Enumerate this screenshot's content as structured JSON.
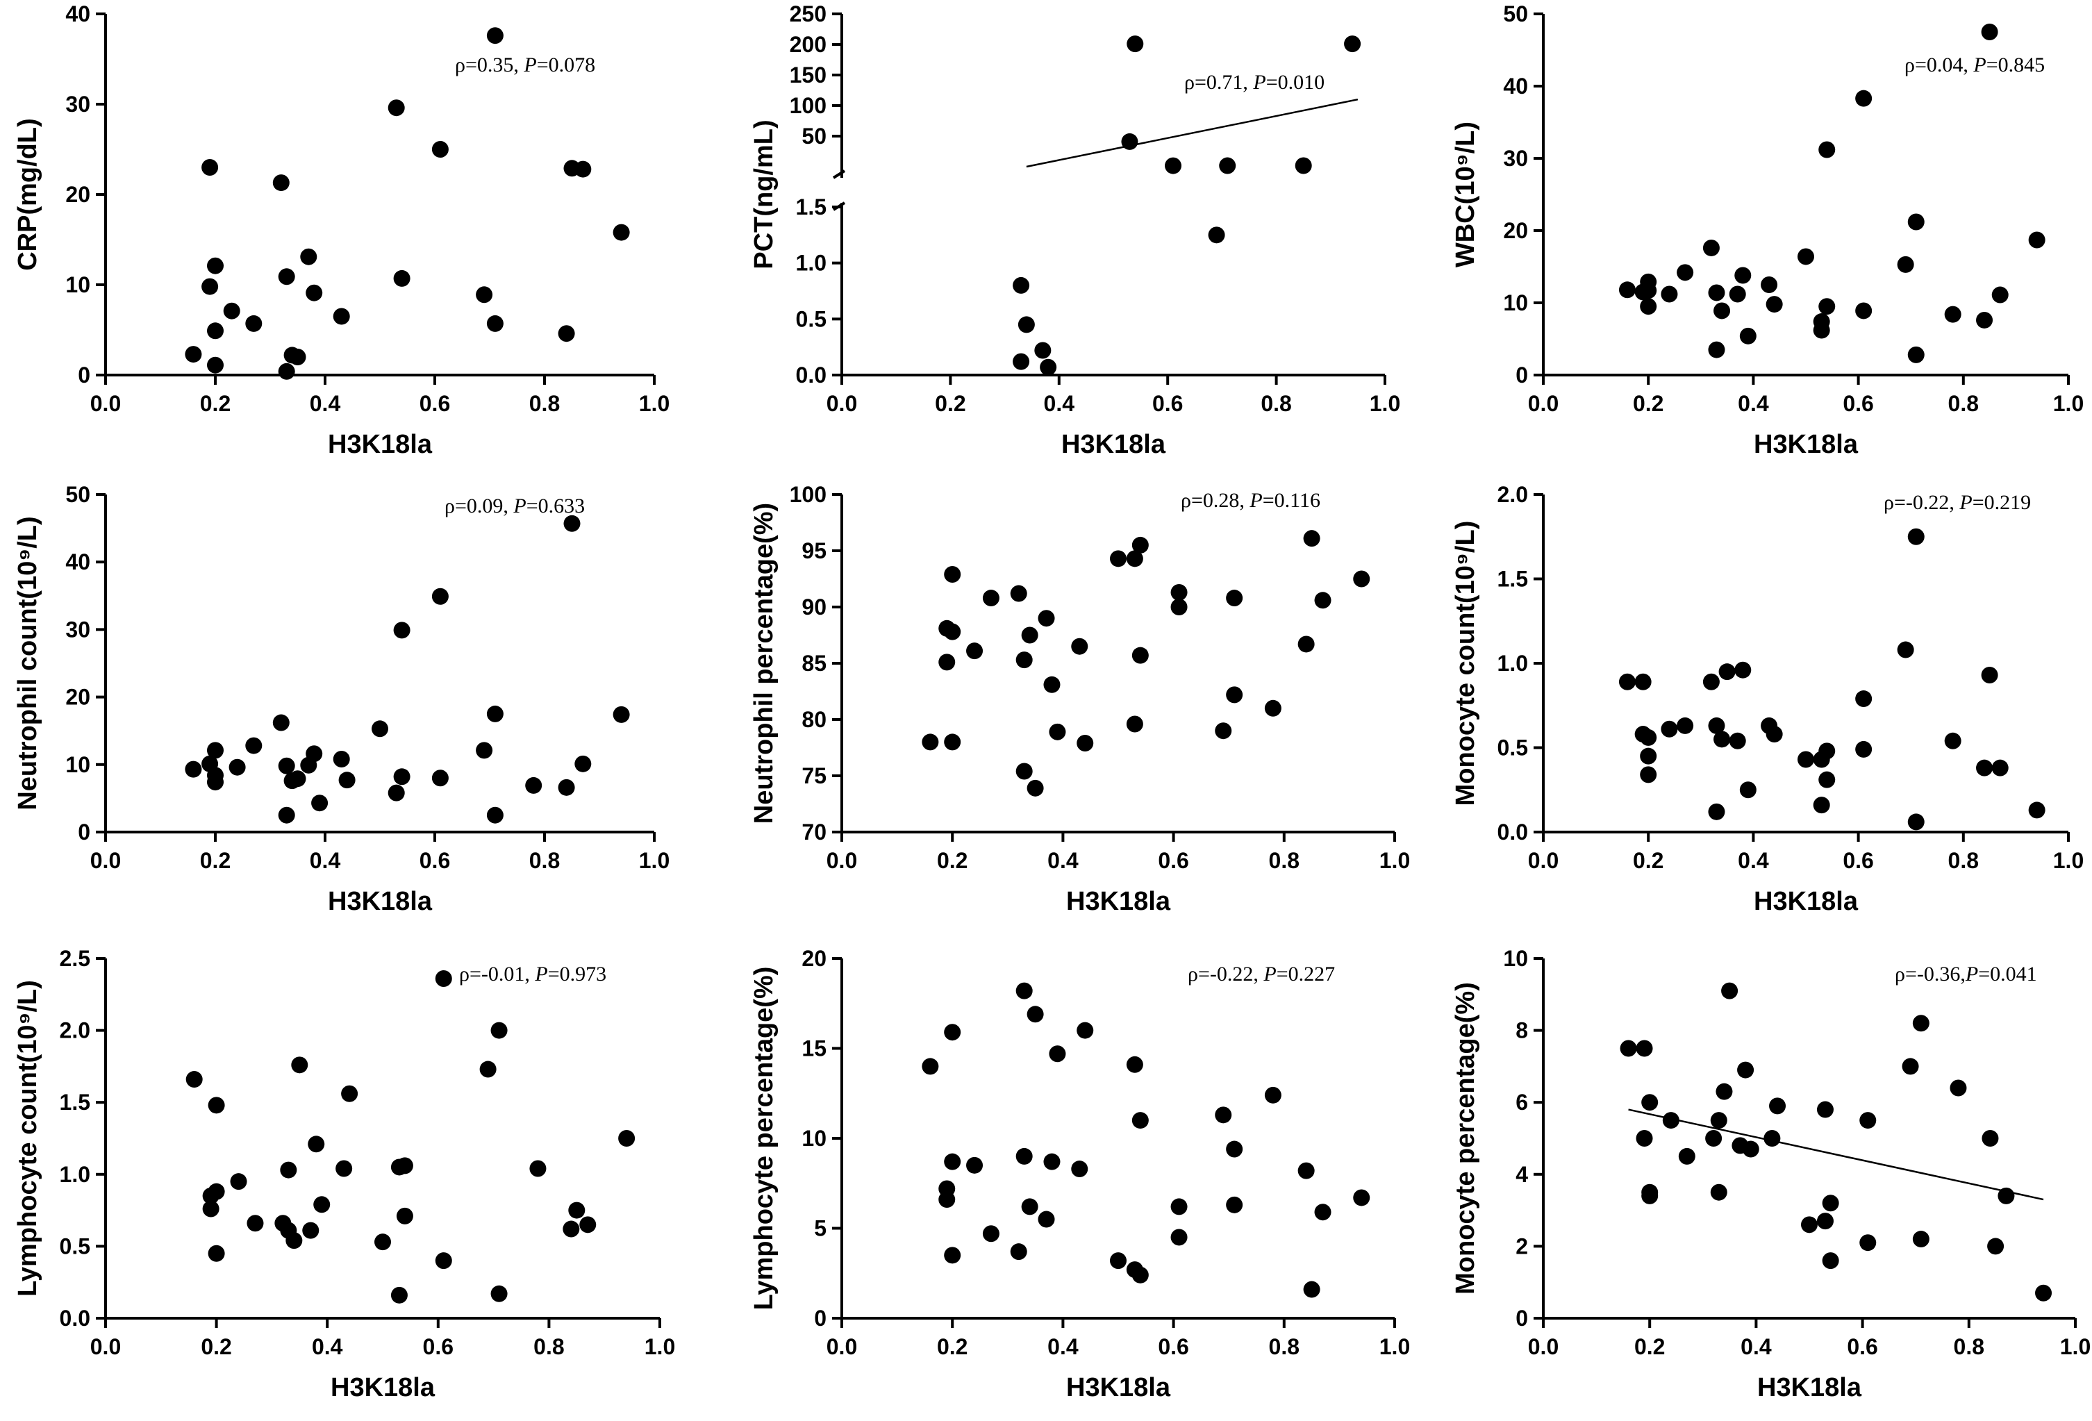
{
  "chart_data": [
    {
      "type": "scatter",
      "id": "crp",
      "xlabel": "H3K18la",
      "ylabel": "CRP(mg/dL)",
      "xlim": [
        0,
        1
      ],
      "ylim": [
        0,
        40
      ],
      "xticks": [
        "0.0",
        "0.2",
        "0.4",
        "0.6",
        "0.8",
        "1.0"
      ],
      "yticks": [
        "0",
        "10",
        "20",
        "30",
        "40"
      ],
      "annotation": {
        "rho_prefix": "ρ=0.35, ",
        "p_label": "P",
        "p_value": "=0.078"
      },
      "x": [
        0.16,
        0.19,
        0.19,
        0.2,
        0.2,
        0.2,
        0.23,
        0.27,
        0.32,
        0.33,
        0.33,
        0.34,
        0.35,
        0.37,
        0.38,
        0.43,
        0.53,
        0.54,
        0.61,
        0.69,
        0.71,
        0.71,
        0.84,
        0.85,
        0.87,
        0.94
      ],
      "y": [
        2.3,
        23.0,
        9.8,
        12.1,
        4.9,
        1.1,
        7.1,
        5.7,
        21.3,
        10.9,
        0.4,
        2.2,
        2.0,
        13.1,
        9.1,
        6.5,
        29.6,
        10.7,
        25.0,
        8.9,
        37.6,
        5.7,
        4.6,
        22.9,
        22.8,
        15.8
      ]
    },
    {
      "type": "scatter",
      "id": "pct",
      "xlabel": "H3K18la",
      "ylabel": "PCT(ng/mL)",
      "xlim": [
        0,
        1
      ],
      "ylim_lower": [
        0,
        1.5
      ],
      "ylim_upper": [
        0,
        250
      ],
      "xticks": [
        "0.0",
        "0.2",
        "0.4",
        "0.6",
        "0.8",
        "1.0"
      ],
      "yticks_lower": [
        "0.0",
        "0.5",
        "1.0",
        "1.5"
      ],
      "yticks_upper": [
        "50",
        "100",
        "150",
        "200",
        "250"
      ],
      "annotation": {
        "rho_prefix": "ρ=0.71, ",
        "p_label": "P",
        "p_value": "=0.010"
      },
      "x": [
        0.33,
        0.33,
        0.34,
        0.37,
        0.38,
        0.53,
        0.54,
        0.61,
        0.69,
        0.71,
        0.85,
        0.94
      ],
      "y": [
        0.8,
        0.12,
        0.45,
        0.22,
        0.07,
        41,
        201,
        1.6,
        1.25,
        1.65,
        1.72,
        201
      ],
      "fit_line": {
        "x1": 0.34,
        "x2": 0.95,
        "segment": "upper",
        "y1": 0,
        "y2": 110
      }
    },
    {
      "type": "scatter",
      "id": "wbc",
      "xlabel": "H3K18la",
      "ylabel": "WBC(10⁹/L)",
      "xlim": [
        0,
        1
      ],
      "ylim": [
        0,
        50
      ],
      "xticks": [
        "0.0",
        "0.2",
        "0.4",
        "0.6",
        "0.8",
        "1.0"
      ],
      "yticks": [
        "0",
        "10",
        "20",
        "30",
        "40",
        "50"
      ],
      "annotation": {
        "rho_prefix": "ρ=0.04, ",
        "p_label": "P",
        "p_value": "=0.845"
      },
      "x": [
        0.16,
        0.19,
        0.2,
        0.2,
        0.2,
        0.24,
        0.27,
        0.32,
        0.33,
        0.33,
        0.34,
        0.37,
        0.38,
        0.39,
        0.43,
        0.44,
        0.5,
        0.53,
        0.53,
        0.54,
        0.54,
        0.61,
        0.61,
        0.69,
        0.71,
        0.71,
        0.78,
        0.84,
        0.85,
        0.87,
        0.94
      ],
      "y": [
        11.8,
        11.5,
        12.9,
        11.7,
        9.5,
        11.2,
        14.2,
        17.6,
        11.4,
        3.5,
        8.9,
        11.2,
        13.8,
        5.4,
        12.5,
        9.8,
        16.4,
        7.4,
        6.2,
        31.2,
        9.5,
        38.3,
        8.9,
        15.3,
        21.2,
        2.8,
        8.4,
        7.6,
        47.5,
        11.1,
        18.7
      ]
    },
    {
      "type": "scatter",
      "id": "neutrophil-count",
      "xlabel": "H3K18la",
      "ylabel": "Neutrophil count(10⁹/L)",
      "xlim": [
        0,
        1
      ],
      "ylim": [
        0,
        50
      ],
      "xticks": [
        "0.0",
        "0.2",
        "0.4",
        "0.6",
        "0.8",
        "1.0"
      ],
      "yticks": [
        "0",
        "10",
        "20",
        "30",
        "40",
        "50"
      ],
      "annotation": {
        "rho_prefix": "ρ=0.09, ",
        "p_label": "P",
        "p_value": "=0.633"
      },
      "x": [
        0.16,
        0.19,
        0.2,
        0.2,
        0.2,
        0.24,
        0.27,
        0.32,
        0.33,
        0.33,
        0.34,
        0.35,
        0.37,
        0.38,
        0.39,
        0.43,
        0.44,
        0.5,
        0.53,
        0.54,
        0.54,
        0.61,
        0.61,
        0.69,
        0.71,
        0.71,
        0.78,
        0.84,
        0.85,
        0.87,
        0.94
      ],
      "y": [
        9.3,
        10.1,
        12.1,
        8.4,
        7.4,
        9.6,
        12.8,
        16.2,
        9.8,
        2.5,
        7.6,
        7.9,
        9.9,
        11.6,
        4.3,
        10.8,
        7.7,
        15.3,
        5.8,
        29.9,
        8.2,
        34.9,
        8.0,
        12.1,
        17.5,
        2.5,
        6.9,
        6.6,
        45.7,
        10.1,
        17.4
      ]
    },
    {
      "type": "scatter",
      "id": "neutrophil-percentage",
      "xlabel": "H3K18la",
      "ylabel": "Neutrophil percentage(%)",
      "xlim": [
        0,
        1
      ],
      "ylim": [
        70,
        100
      ],
      "xticks": [
        "0.0",
        "0.2",
        "0.4",
        "0.6",
        "0.8",
        "1.0"
      ],
      "yticks": [
        "70",
        "75",
        "80",
        "85",
        "90",
        "95",
        "100"
      ],
      "annotation": {
        "rho_prefix": "ρ=0.28, ",
        "p_label": "P",
        "p_value": "=0.116"
      },
      "x": [
        0.16,
        0.19,
        0.19,
        0.2,
        0.2,
        0.2,
        0.24,
        0.27,
        0.32,
        0.33,
        0.33,
        0.34,
        0.35,
        0.37,
        0.38,
        0.39,
        0.43,
        0.44,
        0.5,
        0.53,
        0.53,
        0.54,
        0.54,
        0.61,
        0.61,
        0.69,
        0.71,
        0.71,
        0.78,
        0.84,
        0.85,
        0.87,
        0.94
      ],
      "y": [
        78.0,
        88.1,
        85.1,
        87.8,
        92.9,
        78.0,
        86.1,
        90.8,
        91.2,
        85.3,
        75.4,
        87.5,
        73.9,
        89.0,
        83.1,
        78.9,
        86.5,
        77.9,
        94.3,
        94.3,
        79.6,
        95.5,
        85.7,
        91.3,
        90.0,
        79.0,
        90.8,
        82.2,
        81.0,
        86.7,
        96.1,
        90.6,
        92.5
      ]
    },
    {
      "type": "scatter",
      "id": "monocyte-count",
      "xlabel": "H3K18la",
      "ylabel": "Monocyte count(10⁹/L)",
      "xlim": [
        0,
        1
      ],
      "ylim": [
        0,
        2
      ],
      "xticks": [
        "0.0",
        "0.2",
        "0.4",
        "0.6",
        "0.8",
        "1.0"
      ],
      "yticks": [
        "0.0",
        "0.5",
        "1.0",
        "1.5",
        "2.0"
      ],
      "annotation": {
        "rho_prefix": "ρ=-0.22, ",
        "p_label": "P",
        "p_value": "=0.219"
      },
      "x": [
        0.16,
        0.19,
        0.19,
        0.2,
        0.2,
        0.2,
        0.24,
        0.27,
        0.32,
        0.33,
        0.33,
        0.34,
        0.35,
        0.37,
        0.38,
        0.39,
        0.43,
        0.44,
        0.5,
        0.53,
        0.53,
        0.54,
        0.54,
        0.61,
        0.61,
        0.69,
        0.71,
        0.71,
        0.78,
        0.84,
        0.85,
        0.87,
        0.94
      ],
      "y": [
        0.89,
        0.89,
        0.58,
        0.56,
        0.45,
        0.34,
        0.61,
        0.63,
        0.89,
        0.63,
        0.12,
        0.55,
        0.95,
        0.54,
        0.96,
        0.25,
        0.63,
        0.58,
        0.43,
        0.43,
        0.16,
        0.48,
        0.31,
        0.79,
        0.49,
        1.08,
        1.75,
        0.06,
        0.54,
        0.38,
        0.93,
        0.38,
        0.13
      ]
    },
    {
      "type": "scatter",
      "id": "lymphocyte-count",
      "xlabel": "H3K18la",
      "ylabel": "Lymphocyte count(10⁹/L)",
      "xlim": [
        0,
        1
      ],
      "ylim": [
        0,
        2.5
      ],
      "xticks": [
        "0.0",
        "0.2",
        "0.4",
        "0.6",
        "0.8",
        "1.0"
      ],
      "yticks": [
        "0.0",
        "0.5",
        "1.0",
        "1.5",
        "2.0",
        "2.5"
      ],
      "annotation": {
        "rho_prefix": "ρ=-0.01, ",
        "p_label": "P",
        "p_value": "=0.973"
      },
      "x": [
        0.16,
        0.19,
        0.19,
        0.2,
        0.2,
        0.2,
        0.24,
        0.27,
        0.32,
        0.33,
        0.33,
        0.34,
        0.35,
        0.37,
        0.38,
        0.39,
        0.43,
        0.44,
        0.5,
        0.53,
        0.53,
        0.54,
        0.54,
        0.61,
        0.61,
        0.69,
        0.71,
        0.71,
        0.78,
        0.84,
        0.85,
        0.87,
        0.94
      ],
      "y": [
        1.66,
        0.76,
        0.85,
        1.48,
        0.88,
        0.45,
        0.95,
        0.66,
        0.66,
        1.03,
        0.61,
        0.54,
        1.76,
        0.61,
        1.21,
        0.79,
        1.04,
        1.56,
        0.53,
        1.05,
        0.16,
        0.71,
        1.06,
        2.36,
        0.4,
        1.73,
        2.0,
        0.17,
        1.04,
        0.62,
        0.75,
        0.65,
        1.25
      ]
    },
    {
      "type": "scatter",
      "id": "lymphocyte-percentage",
      "xlabel": "H3K18la",
      "ylabel": "Lymphocyte percentage(%)",
      "xlim": [
        0,
        1
      ],
      "ylim": [
        0,
        20
      ],
      "xticks": [
        "0.0",
        "0.2",
        "0.4",
        "0.6",
        "0.8",
        "1.0"
      ],
      "yticks": [
        "0",
        "5",
        "10",
        "15",
        "20"
      ],
      "annotation": {
        "rho_prefix": "ρ=-0.22, ",
        "p_label": "P",
        "p_value": "=0.227"
      },
      "x": [
        0.16,
        0.19,
        0.19,
        0.2,
        0.2,
        0.2,
        0.24,
        0.27,
        0.32,
        0.33,
        0.33,
        0.34,
        0.35,
        0.37,
        0.38,
        0.39,
        0.43,
        0.44,
        0.5,
        0.53,
        0.53,
        0.54,
        0.54,
        0.61,
        0.61,
        0.69,
        0.71,
        0.71,
        0.78,
        0.84,
        0.85,
        0.87,
        0.94
      ],
      "y": [
        14.0,
        7.2,
        6.6,
        15.9,
        8.7,
        3.5,
        8.5,
        4.7,
        3.7,
        18.2,
        9.0,
        6.2,
        16.9,
        5.5,
        8.7,
        14.7,
        8.3,
        16.0,
        3.2,
        14.1,
        2.7,
        11.0,
        2.4,
        6.2,
        4.5,
        11.3,
        9.4,
        6.3,
        12.4,
        8.2,
        1.6,
        5.9,
        6.7
      ]
    },
    {
      "type": "scatter",
      "id": "monocyte-percentage",
      "xlabel": "H3K18la",
      "ylabel": "Monocyte percentage(%)",
      "xlim": [
        0,
        1
      ],
      "ylim": [
        0,
        10
      ],
      "xticks": [
        "0.0",
        "0.2",
        "0.4",
        "0.6",
        "0.8",
        "1.0"
      ],
      "yticks": [
        "0",
        "2",
        "4",
        "6",
        "8",
        "10"
      ],
      "annotation": {
        "rho_prefix": "ρ=-0.36,",
        "p_label": "P",
        "p_value": "=0.041"
      },
      "x": [
        0.16,
        0.19,
        0.19,
        0.2,
        0.2,
        0.2,
        0.24,
        0.27,
        0.32,
        0.33,
        0.33,
        0.34,
        0.35,
        0.37,
        0.38,
        0.39,
        0.43,
        0.44,
        0.5,
        0.53,
        0.53,
        0.54,
        0.54,
        0.61,
        0.61,
        0.69,
        0.71,
        0.71,
        0.78,
        0.84,
        0.85,
        0.87,
        0.94
      ],
      "y": [
        7.5,
        7.5,
        5.0,
        6.0,
        3.5,
        3.4,
        5.5,
        4.5,
        5.0,
        5.5,
        3.5,
        6.3,
        9.1,
        4.8,
        6.9,
        4.7,
        5.0,
        5.9,
        2.6,
        5.8,
        2.7,
        3.2,
        1.6,
        5.5,
        2.1,
        7.0,
        8.2,
        2.2,
        6.4,
        5.0,
        2.0,
        3.4,
        0.7
      ],
      "fit_line": {
        "x1": 0.16,
        "x2": 0.94,
        "y1": 5.8,
        "y2": 3.3
      }
    }
  ]
}
